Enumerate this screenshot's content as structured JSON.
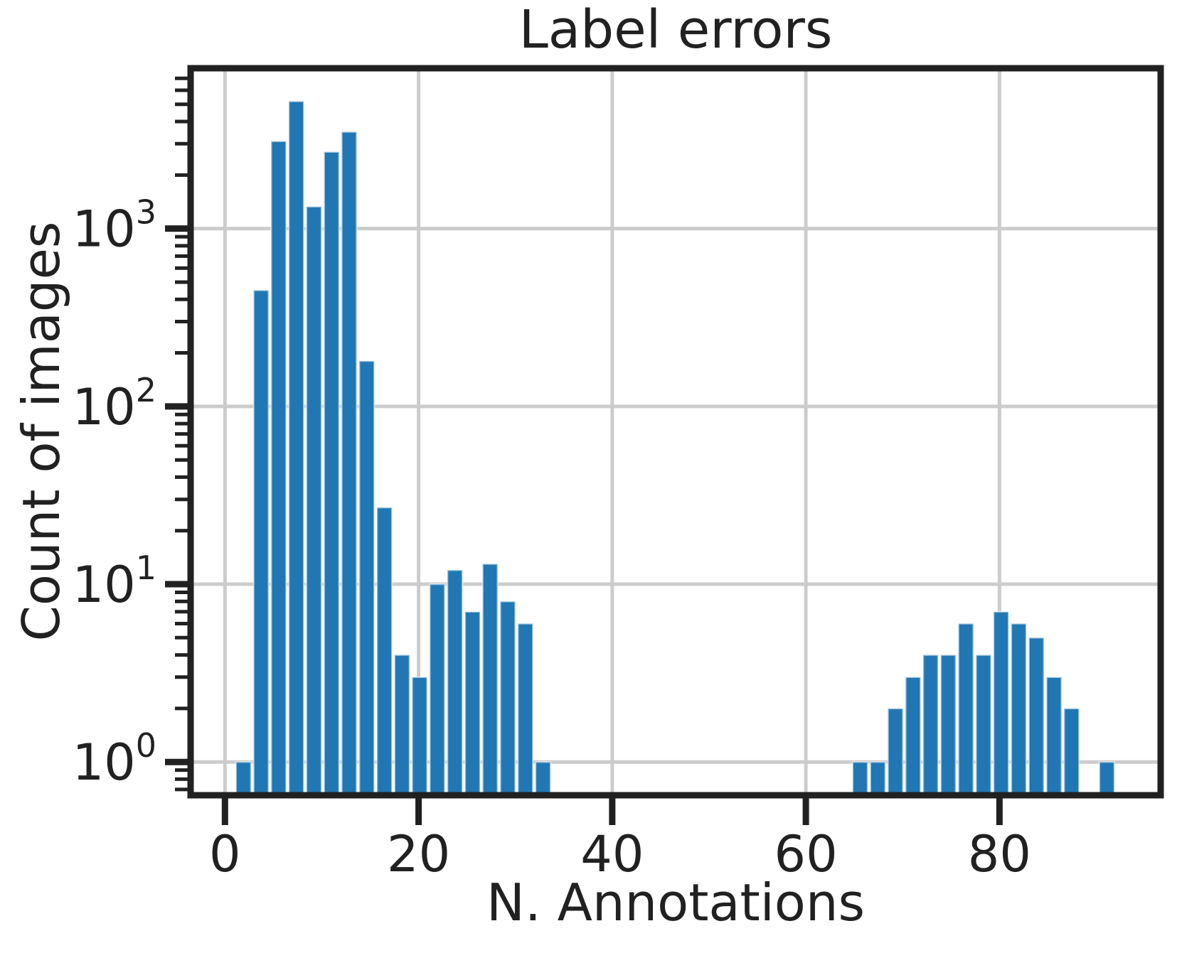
{
  "chart_data": {
    "type": "bar",
    "subtype": "histogram",
    "title": "Label errors",
    "xlabel": "N. Annotations",
    "ylabel": "Count of images",
    "y_scale": "log",
    "grid": true,
    "legend": false,
    "xlim": [
      -3.55,
      96.65
    ],
    "ylim": [
      0.65,
      7980
    ],
    "x_ticks": [
      0,
      20,
      40,
      60,
      80
    ],
    "y_ticks": [
      1,
      10,
      100,
      1000
    ],
    "y_tick_labels": [
      "10⁰",
      "10¹",
      "10²",
      "10³"
    ],
    "bin_start": 1.0,
    "bin_width": 1.82,
    "counts": [
      1,
      450,
      3100,
      5200,
      1330,
      2700,
      3500,
      180,
      27,
      4,
      3,
      10,
      12,
      7,
      13,
      8,
      6,
      1,
      0,
      0,
      0,
      0,
      0,
      0,
      0,
      0,
      0,
      0,
      0,
      0,
      0,
      0,
      0,
      0,
      0,
      1,
      1,
      2,
      3,
      4,
      4,
      6,
      4,
      7,
      6,
      5,
      3,
      2,
      0,
      1
    ],
    "colors": {
      "bars": "#2077b4",
      "bar_edge": "rgba(255,255,255,0.5)",
      "grid": "#cccccc",
      "axis": "#212121",
      "background": "#ffffff"
    }
  }
}
